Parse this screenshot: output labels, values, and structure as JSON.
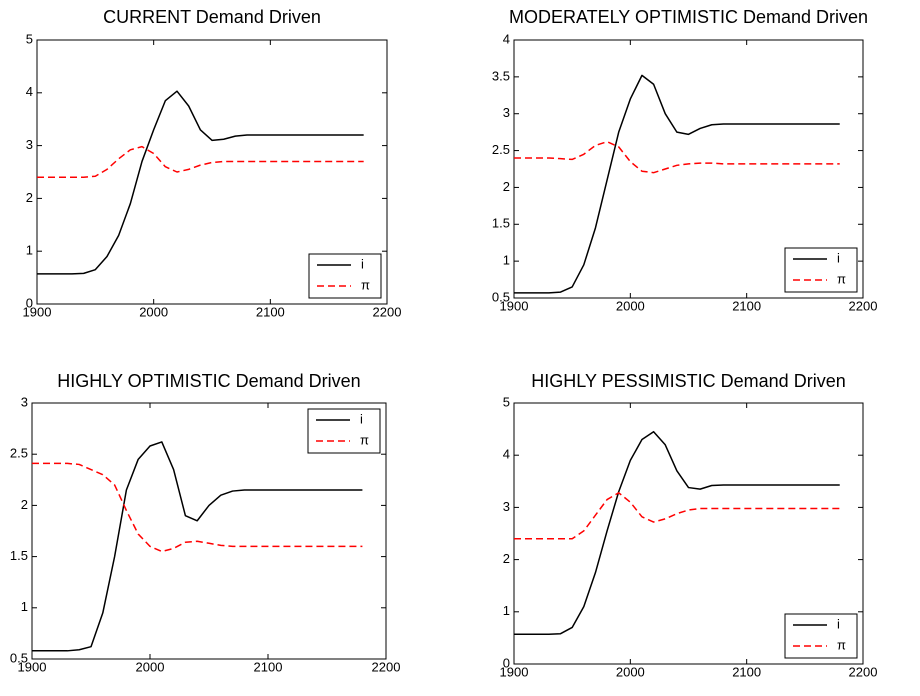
{
  "chart_data": [
    {
      "type": "line",
      "title": "CURRENT Demand Driven",
      "x": [
        1900,
        1910,
        1920,
        1930,
        1940,
        1950,
        1960,
        1970,
        1980,
        1990,
        2000,
        2010,
        2020,
        2030,
        2040,
        2050,
        2060,
        2070,
        2080,
        2090,
        2100,
        2110,
        2120,
        2130,
        2140,
        2150,
        2160,
        2170,
        2180
      ],
      "series": [
        {
          "name": "i",
          "color": "#000000",
          "dashed": false,
          "values": [
            0.57,
            0.57,
            0.57,
            0.57,
            0.58,
            0.65,
            0.9,
            1.3,
            1.9,
            2.7,
            3.3,
            3.85,
            4.03,
            3.75,
            3.3,
            3.1,
            3.12,
            3.18,
            3.2,
            3.2,
            3.2,
            3.2,
            3.2,
            3.2,
            3.2,
            3.2,
            3.2,
            3.2,
            3.2
          ]
        },
        {
          "name": "π",
          "color": "#ff0000",
          "dashed": true,
          "values": [
            2.4,
            2.4,
            2.4,
            2.4,
            2.4,
            2.42,
            2.55,
            2.75,
            2.92,
            2.98,
            2.85,
            2.6,
            2.5,
            2.55,
            2.63,
            2.68,
            2.7,
            2.7,
            2.7,
            2.7,
            2.7,
            2.7,
            2.7,
            2.7,
            2.7,
            2.7,
            2.7,
            2.7,
            2.7
          ]
        }
      ],
      "xlim": [
        1900,
        2200
      ],
      "xticks": [
        1900,
        2000,
        2100,
        2200
      ],
      "ylim": [
        0,
        5
      ],
      "yticks": [
        0,
        1,
        2,
        3,
        4,
        5
      ],
      "legend": "lower right"
    },
    {
      "type": "line",
      "title": "MODERATELY OPTIMISTIC Demand Driven",
      "x": [
        1900,
        1910,
        1920,
        1930,
        1940,
        1950,
        1960,
        1970,
        1980,
        1990,
        2000,
        2010,
        2020,
        2030,
        2040,
        2050,
        2060,
        2070,
        2080,
        2090,
        2100,
        2110,
        2120,
        2130,
        2140,
        2150,
        2160,
        2170,
        2180
      ],
      "series": [
        {
          "name": "i",
          "color": "#000000",
          "dashed": false,
          "values": [
            0.57,
            0.57,
            0.57,
            0.57,
            0.58,
            0.65,
            0.95,
            1.45,
            2.1,
            2.75,
            3.2,
            3.52,
            3.4,
            3.0,
            2.75,
            2.72,
            2.8,
            2.85,
            2.86,
            2.86,
            2.86,
            2.86,
            2.86,
            2.86,
            2.86,
            2.86,
            2.86,
            2.86,
            2.86
          ]
        },
        {
          "name": "π",
          "color": "#ff0000",
          "dashed": true,
          "values": [
            2.4,
            2.4,
            2.4,
            2.4,
            2.39,
            2.38,
            2.45,
            2.57,
            2.62,
            2.55,
            2.35,
            2.22,
            2.2,
            2.25,
            2.3,
            2.32,
            2.33,
            2.33,
            2.32,
            2.32,
            2.32,
            2.32,
            2.32,
            2.32,
            2.32,
            2.32,
            2.32,
            2.32,
            2.32
          ]
        }
      ],
      "xlim": [
        1900,
        2200
      ],
      "xticks": [
        1900,
        2000,
        2100,
        2200
      ],
      "ylim": [
        0.5,
        4
      ],
      "yticks": [
        0.5,
        1,
        1.5,
        2,
        2.5,
        3,
        3.5,
        4
      ],
      "legend": "lower right"
    },
    {
      "type": "line",
      "title": "HIGHLY OPTIMISTIC Demand Driven",
      "x": [
        1900,
        1910,
        1920,
        1930,
        1940,
        1950,
        1960,
        1970,
        1980,
        1990,
        2000,
        2010,
        2020,
        2030,
        2040,
        2050,
        2060,
        2070,
        2080,
        2090,
        2100,
        2110,
        2120,
        2130,
        2140,
        2150,
        2160,
        2170,
        2180
      ],
      "series": [
        {
          "name": "i",
          "color": "#000000",
          "dashed": false,
          "values": [
            0.58,
            0.58,
            0.58,
            0.58,
            0.59,
            0.62,
            0.95,
            1.5,
            2.15,
            2.45,
            2.58,
            2.62,
            2.35,
            1.9,
            1.85,
            2.0,
            2.1,
            2.14,
            2.15,
            2.15,
            2.15,
            2.15,
            2.15,
            2.15,
            2.15,
            2.15,
            2.15,
            2.15,
            2.15
          ]
        },
        {
          "name": "π",
          "color": "#ff0000",
          "dashed": true,
          "values": [
            2.41,
            2.41,
            2.41,
            2.41,
            2.4,
            2.35,
            2.3,
            2.2,
            1.95,
            1.72,
            1.6,
            1.55,
            1.58,
            1.64,
            1.65,
            1.63,
            1.61,
            1.6,
            1.6,
            1.6,
            1.6,
            1.6,
            1.6,
            1.6,
            1.6,
            1.6,
            1.6,
            1.6,
            1.6
          ]
        }
      ],
      "xlim": [
        1900,
        2200
      ],
      "xticks": [
        1900,
        2000,
        2100,
        2200
      ],
      "ylim": [
        0.5,
        3
      ],
      "yticks": [
        0.5,
        1,
        1.5,
        2,
        2.5,
        3
      ],
      "legend": "upper right"
    },
    {
      "type": "line",
      "title": "HIGHLY PESSIMISTIC Demand Driven",
      "x": [
        1900,
        1910,
        1920,
        1930,
        1940,
        1950,
        1960,
        1970,
        1980,
        1990,
        2000,
        2010,
        2020,
        2030,
        2040,
        2050,
        2060,
        2070,
        2080,
        2090,
        2100,
        2110,
        2120,
        2130,
        2140,
        2150,
        2160,
        2170,
        2180
      ],
      "series": [
        {
          "name": "i",
          "color": "#000000",
          "dashed": false,
          "values": [
            0.57,
            0.57,
            0.57,
            0.57,
            0.58,
            0.7,
            1.1,
            1.75,
            2.55,
            3.3,
            3.9,
            4.3,
            4.45,
            4.2,
            3.7,
            3.38,
            3.35,
            3.42,
            3.43,
            3.43,
            3.43,
            3.43,
            3.43,
            3.43,
            3.43,
            3.43,
            3.43,
            3.43,
            3.43
          ]
        },
        {
          "name": "π",
          "color": "#ff0000",
          "dashed": true,
          "values": [
            2.4,
            2.4,
            2.4,
            2.4,
            2.4,
            2.4,
            2.55,
            2.85,
            3.15,
            3.28,
            3.1,
            2.82,
            2.72,
            2.78,
            2.88,
            2.95,
            2.98,
            2.98,
            2.98,
            2.98,
            2.98,
            2.98,
            2.98,
            2.98,
            2.98,
            2.98,
            2.98,
            2.98,
            2.98
          ]
        }
      ],
      "xlim": [
        1900,
        2200
      ],
      "xticks": [
        1900,
        2000,
        2100,
        2200
      ],
      "ylim": [
        0,
        5
      ],
      "yticks": [
        0,
        1,
        2,
        3,
        4,
        5
      ],
      "legend": "lower right"
    }
  ]
}
